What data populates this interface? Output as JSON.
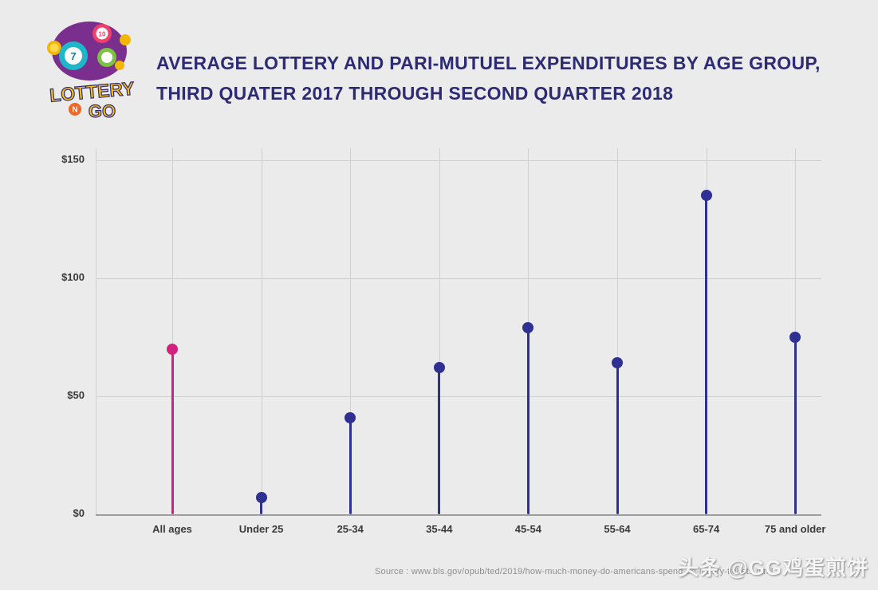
{
  "header": {
    "title_line1": "AVERAGE LOTTERY AND PARI-MUTUEL EXPENDITURES BY AGE GROUP,",
    "title_line2": "THIRD QUATER 2017 THROUGH SECOND QUARTER 2018"
  },
  "logo": {
    "brand_lottery": "LOTTERY",
    "brand_n": "N",
    "brand_go": "GO",
    "ball_7": "7",
    "ball_10": "10"
  },
  "chart_data": {
    "type": "lollipop",
    "title": "AVERAGE LOTTERY AND PARI-MUTUEL EXPENDITURES BY AGE GROUP, THIRD QUATER 2017 THROUGH SECOND QUARTER 2018",
    "categories": [
      "All ages",
      "Under 25",
      "25-34",
      "35-44",
      "45-54",
      "55-64",
      "65-74",
      "75 and older"
    ],
    "values": [
      70,
      7,
      41,
      62,
      79,
      64,
      135,
      75
    ],
    "unit": "USD",
    "series_colors": [
      "#d4217d",
      "#2e3192",
      "#2e3192",
      "#2e3192",
      "#2e3192",
      "#2e3192",
      "#2e3192",
      "#2e3192"
    ],
    "highlight": {
      "category": "All ages",
      "color": "#d4217d"
    },
    "ytick_labels": [
      "$0",
      "$50",
      "$100",
      "$150"
    ],
    "ytick_values": [
      0,
      50,
      100,
      150
    ],
    "ylim": [
      0,
      155
    ],
    "xlabel": "",
    "ylabel": "",
    "grid": true,
    "legend": false
  },
  "footer": {
    "source": "Source : www.bls.gov/opub/ted/2019/how-much-money-do-americans-spend-on-lottery-tickets.html",
    "watermark": "头条 @GG鸡蛋煎饼"
  },
  "colors": {
    "background": "#ebebeb",
    "title": "#2e2b75",
    "gridline": "#cfcfcf",
    "axis_labels": "#3a3a3a",
    "stem": "#2e3192",
    "highlight": "#d4217d"
  }
}
